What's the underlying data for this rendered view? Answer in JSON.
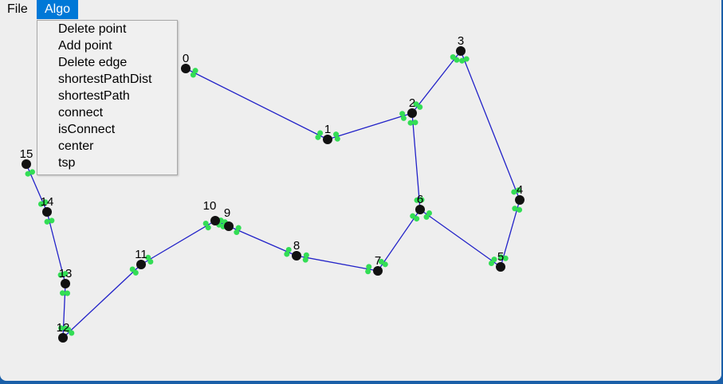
{
  "menubar": {
    "file_label": "File",
    "algo_label": "Algo"
  },
  "algo_menu": {
    "items": [
      "Delete point",
      "Add point",
      "Delete edge",
      "shortestPathDist",
      "shortestPath",
      "connect",
      "isConnect",
      "center",
      "tsp"
    ]
  },
  "graph": {
    "nodes": [
      {
        "id": "0"
      },
      {
        "id": "1"
      },
      {
        "id": "2"
      },
      {
        "id": "3"
      },
      {
        "id": "4"
      },
      {
        "id": "5"
      },
      {
        "id": "6"
      },
      {
        "id": "7"
      },
      {
        "id": "8"
      },
      {
        "id": "9"
      },
      {
        "id": "10"
      },
      {
        "id": "11"
      },
      {
        "id": "12"
      },
      {
        "id": "13"
      },
      {
        "id": "14"
      },
      {
        "id": "15"
      }
    ],
    "edges": [
      [
        "0",
        "1"
      ],
      [
        "1",
        "2"
      ],
      [
        "2",
        "3"
      ],
      [
        "3",
        "4"
      ],
      [
        "4",
        "5"
      ],
      [
        "5",
        "6"
      ],
      [
        "2",
        "6"
      ],
      [
        "6",
        "7"
      ],
      [
        "7",
        "8"
      ],
      [
        "8",
        "9"
      ],
      [
        "9",
        "10"
      ],
      [
        "10",
        "11"
      ],
      [
        "11",
        "12"
      ],
      [
        "12",
        "13"
      ],
      [
        "13",
        "14"
      ],
      [
        "14",
        "15"
      ]
    ],
    "colors": {
      "edge": "#2222c8",
      "node": "#111111",
      "direction_marker": "#33dd55"
    }
  }
}
